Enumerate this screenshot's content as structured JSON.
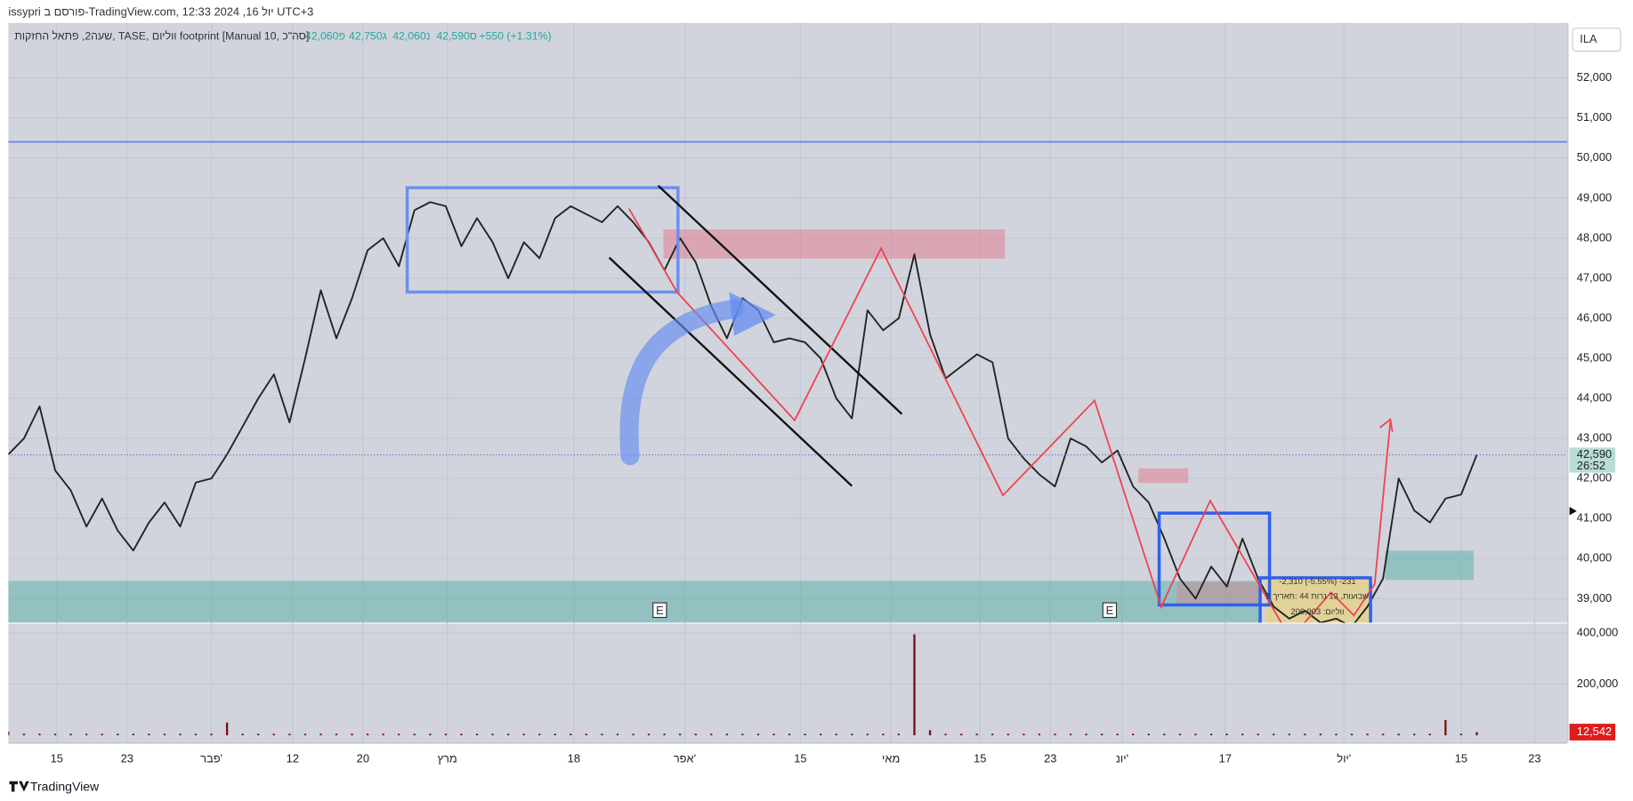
{
  "header": {
    "title": "issypri פורסם ב-TradingView.com, יול 16, 2024 12:33 UTC+3"
  },
  "legend": {
    "symbol": "שעה2, פתאל החזקות, TASE, ווליום footprint [Manual 10, סה\"כ]",
    "ohlc": [
      "פ42,060",
      "ג42,750",
      "נ42,060",
      "ס42,590"
    ],
    "change": "+550 (+1.31%)"
  },
  "currency_button": "ILA",
  "footer": "TradingView",
  "chart_data": {
    "type": "line",
    "values": [
      42600,
      43000,
      43800,
      42200,
      41700,
      40800,
      41500,
      40700,
      40200,
      40900,
      41400,
      40800,
      41900,
      42000,
      42600,
      43300,
      44000,
      44600,
      43400,
      45000,
      46700,
      45500,
      46500,
      47700,
      48000,
      47300,
      48700,
      48900,
      48800,
      47800,
      48500,
      47900,
      47000,
      47900,
      47500,
      48500,
      48800,
      48600,
      48400,
      48800,
      48400,
      47900,
      47200,
      48000,
      47400,
      46300,
      45500,
      46500,
      46200,
      45400,
      45500,
      45400,
      45000,
      44000,
      43500,
      46200,
      45700,
      46000,
      47600,
      45600,
      44500,
      44800,
      45100,
      44900,
      43000,
      42500,
      42100,
      41800,
      43000,
      42800,
      42400,
      42700,
      41800,
      41400,
      40500,
      39500,
      39000,
      39800,
      39300,
      40500,
      39500,
      38800,
      38500,
      38700,
      38400,
      38500,
      38300,
      38800,
      39500,
      42000,
      41200,
      40900,
      41500,
      41600,
      42590
    ],
    "volume": [
      15000,
      6000,
      6000,
      6000,
      6000,
      6000,
      6000,
      6000,
      6000,
      6000,
      6000,
      6000,
      6000,
      6000,
      50000,
      6000,
      6000,
      6000,
      6000,
      6000,
      6000,
      6000,
      6000,
      6000,
      6000,
      6000,
      6000,
      6000,
      6000,
      6000,
      6000,
      6000,
      6000,
      6000,
      6000,
      6000,
      6000,
      6000,
      6000,
      6000,
      6000,
      6000,
      6000,
      6000,
      6000,
      6000,
      6000,
      6000,
      6000,
      6000,
      6000,
      6000,
      6000,
      6000,
      6000,
      6000,
      6000,
      6000,
      395000,
      20000,
      6000,
      6000,
      6000,
      6000,
      6000,
      6000,
      6000,
      6000,
      6000,
      6000,
      6000,
      6000,
      6000,
      6000,
      6000,
      6000,
      6000,
      6000,
      6000,
      6000,
      6000,
      6000,
      6000,
      6000,
      6000,
      6000,
      6000,
      6000,
      6000,
      6000,
      6000,
      6000,
      60000,
      6000,
      12542
    ],
    "color": "#222222",
    "volume_color": "#7a1010",
    "xlim": [
      0,
      99.8
    ],
    "xticks": [
      {
        "value": 3.1,
        "label": "15"
      },
      {
        "value": 7.6,
        "label": "23"
      },
      {
        "value": 13,
        "label": "פבר'"
      },
      {
        "value": 18.2,
        "label": "12"
      },
      {
        "value": 22.7,
        "label": "20"
      },
      {
        "value": 28.1,
        "label": "מרץ"
      },
      {
        "value": 36.2,
        "label": "18"
      },
      {
        "value": 43.3,
        "label": "אפר'"
      },
      {
        "value": 50.7,
        "label": "15"
      },
      {
        "value": 56.5,
        "label": "מאי"
      },
      {
        "value": 62.2,
        "label": "15"
      },
      {
        "value": 66.7,
        "label": "23"
      },
      {
        "value": 71.3,
        "label": "יונ'"
      },
      {
        "value": 77.9,
        "label": "17"
      },
      {
        "value": 85.5,
        "label": "יול'"
      },
      {
        "value": 93,
        "label": "15"
      },
      {
        "value": 97.7,
        "label": "23"
      }
    ],
    "ylim": [
      38400,
      53375
    ],
    "yticks": [
      {
        "value": 52000,
        "label": "52,000"
      },
      {
        "value": 51000,
        "label": "51,000"
      },
      {
        "value": 50000,
        "label": "50,000"
      },
      {
        "value": 49000,
        "label": "49,000"
      },
      {
        "value": 48000,
        "label": "48,000"
      },
      {
        "value": 47000,
        "label": "47,000"
      },
      {
        "value": 46000,
        "label": "46,000"
      },
      {
        "value": 45000,
        "label": "45,000"
      },
      {
        "value": 44000,
        "label": "44,000"
      },
      {
        "value": 43000,
        "label": "43,000"
      },
      {
        "value": 42000,
        "label": "42,000"
      },
      {
        "value": 41000,
        "label": "41,000"
      },
      {
        "value": 40000,
        "label": "40,000"
      },
      {
        "value": 39000,
        "label": "39,000"
      }
    ],
    "y2lim": [
      0,
      436700
    ],
    "y2ticks": [
      {
        "value": 400000,
        "label": "400,000"
      },
      {
        "value": 200000,
        "label": "200,000"
      }
    ],
    "last_price": {
      "value": 42590,
      "label": "42,590"
    },
    "countdown": "26:52",
    "last_volume_label": "12,542",
    "grid": true,
    "events": [
      "E",
      "E"
    ],
    "info_box": [
      "-2,310 (-5.55%) -231",
      "2 שבועות, 13 נרות 44 :תאריך",
      "206,903 :ווליום"
    ]
  }
}
